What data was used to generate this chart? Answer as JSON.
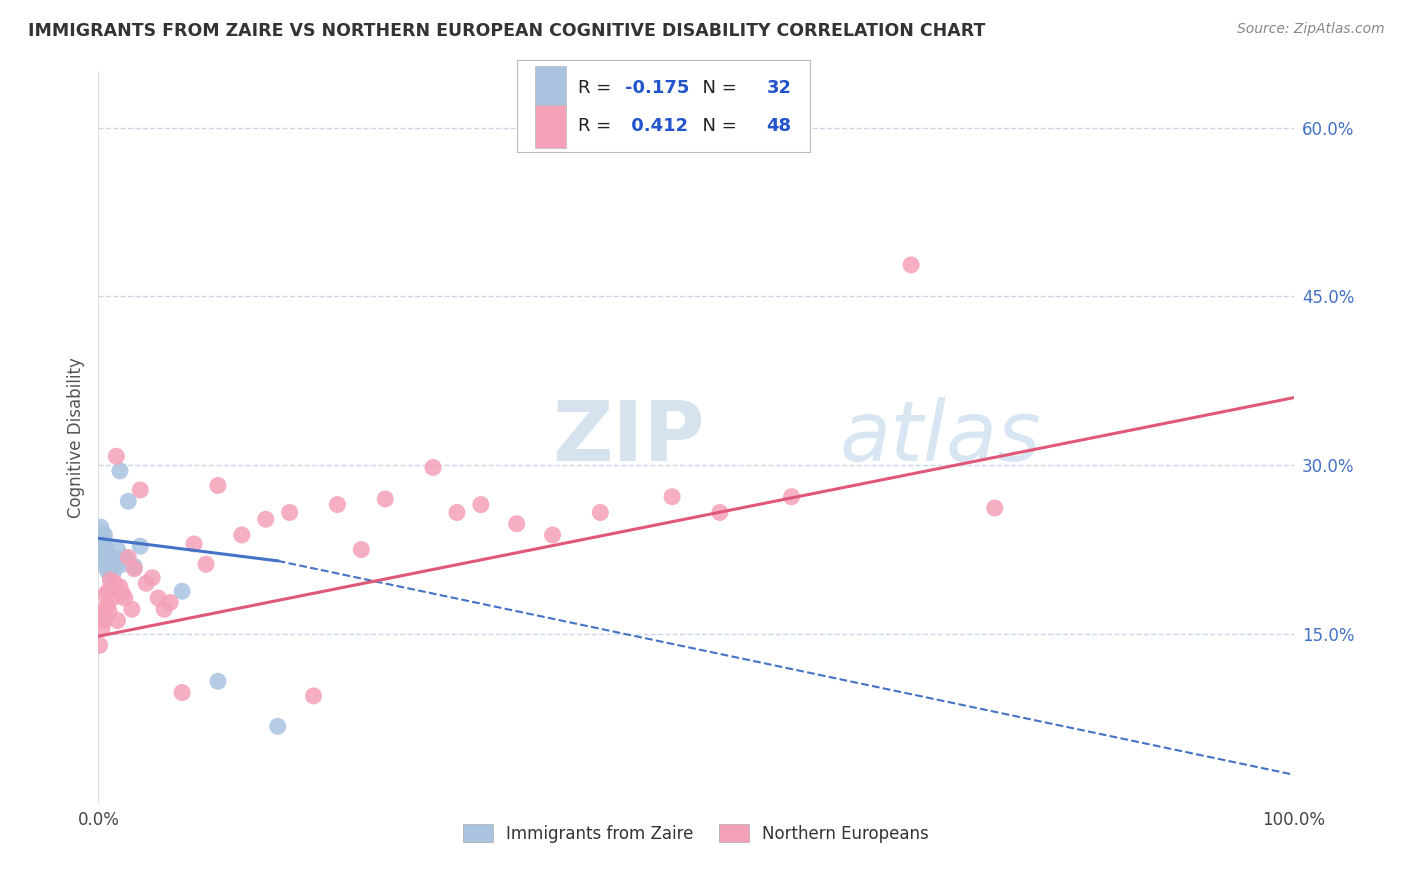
{
  "title": "IMMIGRANTS FROM ZAIRE VS NORTHERN EUROPEAN COGNITIVE DISABILITY CORRELATION CHART",
  "source": "Source: ZipAtlas.com",
  "ylabel": "Cognitive Disability",
  "series": [
    {
      "name": "Immigrants from Zaire",
      "R": -0.175,
      "N": 32,
      "color_scatter": "#aac4e0",
      "color_line": "#4472c4",
      "x": [
        0.001,
        0.002,
        0.002,
        0.003,
        0.003,
        0.004,
        0.004,
        0.005,
        0.005,
        0.005,
        0.006,
        0.006,
        0.007,
        0.007,
        0.008,
        0.008,
        0.009,
        0.01,
        0.011,
        0.012,
        0.013,
        0.015,
        0.016,
        0.018,
        0.02,
        0.022,
        0.025,
        0.03,
        0.035,
        0.07,
        0.1,
        0.15
      ],
      "y": [
        0.23,
        0.245,
        0.235,
        0.225,
        0.24,
        0.215,
        0.228,
        0.222,
        0.232,
        0.238,
        0.21,
        0.228,
        0.22,
        0.215,
        0.205,
        0.218,
        0.212,
        0.2,
        0.21,
        0.218,
        0.206,
        0.212,
        0.225,
        0.295,
        0.212,
        0.218,
        0.268,
        0.21,
        0.228,
        0.188,
        0.108,
        0.068
      ],
      "line_x_start": 0.0,
      "line_x_solid_end": 0.15,
      "line_x_end": 1.0,
      "line_y_start": 0.235,
      "line_y_solid_end": 0.215,
      "line_y_end": 0.025
    },
    {
      "name": "Northern Europeans",
      "R": 0.412,
      "N": 48,
      "color_scatter": "#f4a0b8",
      "color_line": "#e05878",
      "x": [
        0.001,
        0.002,
        0.003,
        0.004,
        0.005,
        0.006,
        0.007,
        0.008,
        0.009,
        0.01,
        0.012,
        0.013,
        0.015,
        0.016,
        0.018,
        0.02,
        0.022,
        0.025,
        0.028,
        0.03,
        0.035,
        0.04,
        0.045,
        0.05,
        0.055,
        0.06,
        0.07,
        0.08,
        0.09,
        0.1,
        0.12,
        0.14,
        0.16,
        0.18,
        0.2,
        0.22,
        0.24,
        0.28,
        0.3,
        0.32,
        0.35,
        0.38,
        0.42,
        0.48,
        0.52,
        0.58,
        0.68,
        0.75
      ],
      "y": [
        0.14,
        0.165,
        0.155,
        0.17,
        0.162,
        0.185,
        0.175,
        0.188,
        0.17,
        0.198,
        0.182,
        0.196,
        0.308,
        0.162,
        0.192,
        0.186,
        0.182,
        0.218,
        0.172,
        0.208,
        0.278,
        0.195,
        0.2,
        0.182,
        0.172,
        0.178,
        0.098,
        0.23,
        0.212,
        0.282,
        0.238,
        0.252,
        0.258,
        0.095,
        0.265,
        0.225,
        0.27,
        0.298,
        0.258,
        0.265,
        0.248,
        0.238,
        0.258,
        0.272,
        0.258,
        0.272,
        0.478,
        0.262
      ],
      "line_x_start": 0.0,
      "line_x_end": 1.0,
      "line_y_start": 0.148,
      "line_y_end": 0.36
    }
  ],
  "xlim": [
    0.0,
    1.0
  ],
  "ylim": [
    0.0,
    0.65
  ],
  "yticks": [
    0.15,
    0.3,
    0.45,
    0.6
  ],
  "ytick_labels": [
    "15.0%",
    "30.0%",
    "45.0%",
    "60.0%"
  ],
  "xticks": [
    0.0,
    1.0
  ],
  "xtick_labels": [
    "0.0%",
    "100.0%"
  ],
  "background_color": "#ffffff",
  "grid_color": "#c8d8e8"
}
